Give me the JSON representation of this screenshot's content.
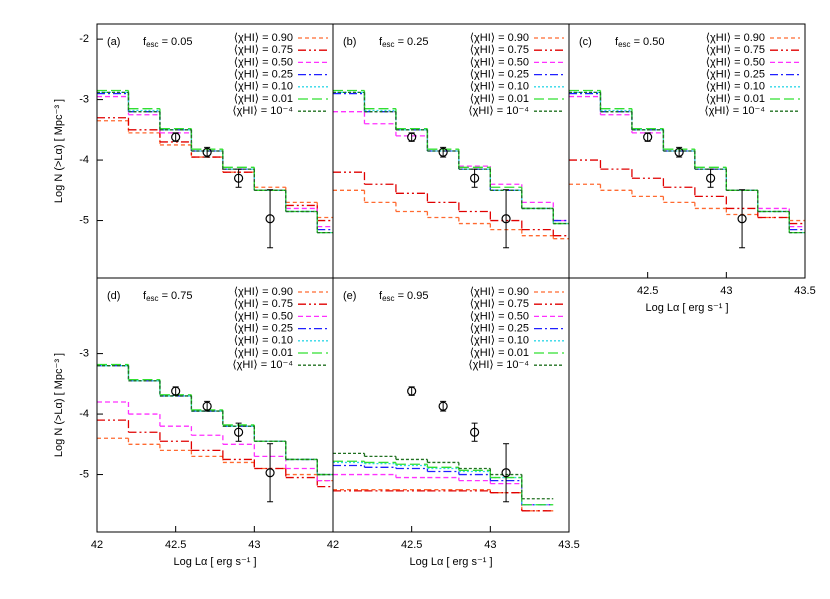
{
  "chart_data": [
    {
      "type": "step",
      "panel": "(a)",
      "annotation": {
        "main": "f",
        "sub": "esc",
        "value": " = 0.05"
      },
      "xlim": [
        42,
        43.5
      ],
      "ylim": [
        -5.95,
        -1.75
      ],
      "yticks": [
        -2,
        -3,
        -4,
        -5
      ],
      "ylabel": "Log N (>Lα)  [ Mpc⁻³ ]",
      "x": [
        42.0,
        42.2,
        42.4,
        42.6,
        42.8,
        43.0,
        43.2,
        43.4
      ],
      "series": [
        {
          "name": "⟨χHI⟩ = 0.90",
          "color": "#ff6a30",
          "values": [
            -3.35,
            -3.55,
            -3.75,
            -3.95,
            -4.2,
            -4.45,
            -4.7,
            -4.95
          ]
        },
        {
          "name": "⟨χHI⟩ = 0.75",
          "color": "#e00000",
          "values": [
            -3.3,
            -3.5,
            -3.7,
            -3.95,
            -4.2,
            -4.5,
            -4.75,
            -5.0
          ]
        },
        {
          "name": "⟨χHI⟩ = 0.50",
          "color": "#ff30ff",
          "values": [
            -2.95,
            -3.25,
            -3.55,
            -3.85,
            -4.15,
            -4.5,
            -4.8,
            -5.1
          ]
        },
        {
          "name": "⟨χHI⟩ = 0.25",
          "color": "#2020ff",
          "values": [
            -2.9,
            -3.2,
            -3.5,
            -3.85,
            -4.15,
            -4.5,
            -4.85,
            -5.15
          ]
        },
        {
          "name": "⟨χHI⟩ = 0.10",
          "color": "#30d8e8",
          "values": [
            -2.88,
            -3.18,
            -3.5,
            -3.85,
            -4.15,
            -4.5,
            -4.85,
            -5.2
          ]
        },
        {
          "name": "⟨χHI⟩ = 0.01",
          "color": "#30e030",
          "values": [
            -2.85,
            -3.15,
            -3.48,
            -3.82,
            -4.12,
            -4.5,
            -4.85,
            -5.2
          ]
        },
        {
          "name": "⟨χHI⟩ = 10⁻⁴",
          "color": "#207020",
          "values": [
            -2.88,
            -3.2,
            -3.5,
            -3.85,
            -4.15,
            -4.5,
            -4.85,
            -5.2
          ]
        }
      ]
    },
    {
      "type": "step",
      "panel": "(b)",
      "annotation": {
        "main": "f",
        "sub": "esc",
        "value": " = 0.25"
      },
      "xlim": [
        42,
        43.5
      ],
      "ylim": [
        -5.95,
        -1.75
      ],
      "x": [
        42.0,
        42.2,
        42.4,
        42.6,
        42.8,
        43.0,
        43.2,
        43.4
      ],
      "series": [
        {
          "name": "⟨χHI⟩ = 0.90",
          "color": "#ff6a30",
          "values": [
            -4.5,
            -4.7,
            -4.85,
            -4.95,
            -5.05,
            -5.15,
            -5.25,
            -5.3
          ]
        },
        {
          "name": "⟨χHI⟩ = 0.75",
          "color": "#e00000",
          "values": [
            -4.2,
            -4.4,
            -4.55,
            -4.7,
            -4.85,
            -5.0,
            -5.15,
            -5.25
          ]
        },
        {
          "name": "⟨χHI⟩ = 0.50",
          "color": "#ff30ff",
          "values": [
            -3.2,
            -3.4,
            -3.6,
            -3.85,
            -4.1,
            -4.4,
            -4.7,
            -5.0
          ]
        },
        {
          "name": "⟨χHI⟩ = 0.25",
          "color": "#2020ff",
          "values": [
            -2.9,
            -3.2,
            -3.5,
            -3.85,
            -4.15,
            -4.5,
            -4.8,
            -5.0
          ]
        },
        {
          "name": "⟨χHI⟩ = 0.10",
          "color": "#30d8e8",
          "values": [
            -2.88,
            -3.18,
            -3.5,
            -3.85,
            -4.15,
            -4.5,
            -4.8,
            -5.05
          ]
        },
        {
          "name": "⟨χHI⟩ = 0.01",
          "color": "#30e030",
          "values": [
            -2.85,
            -3.15,
            -3.48,
            -3.82,
            -4.12,
            -4.45,
            -4.8,
            -5.05
          ]
        },
        {
          "name": "⟨χHI⟩ = 10⁻⁴",
          "color": "#207020",
          "values": [
            -2.88,
            -3.2,
            -3.5,
            -3.85,
            -4.15,
            -4.5,
            -4.8,
            -5.05
          ]
        }
      ]
    },
    {
      "type": "step",
      "panel": "(c)",
      "annotation": {
        "main": "f",
        "sub": "esc",
        "value": " = 0.50"
      },
      "xlim": [
        42,
        43.5
      ],
      "ylim": [
        -5.95,
        -1.75
      ],
      "xticks": [
        42.5,
        43,
        43.5
      ],
      "xlabel": "Log Lα  [ erg s⁻¹ ]",
      "x": [
        42.0,
        42.2,
        42.4,
        42.6,
        42.8,
        43.0,
        43.2,
        43.4
      ],
      "series": [
        {
          "name": "⟨χHI⟩ = 0.90",
          "color": "#ff6a30",
          "values": [
            -4.4,
            -4.5,
            -4.6,
            -4.7,
            -4.8,
            -4.9,
            -4.95,
            -5.0
          ]
        },
        {
          "name": "⟨χHI⟩ = 0.75",
          "color": "#e00000",
          "values": [
            -4.0,
            -4.15,
            -4.3,
            -4.45,
            -4.6,
            -4.8,
            -4.95,
            -5.05
          ]
        },
        {
          "name": "⟨χHI⟩ = 0.50",
          "color": "#ff30ff",
          "values": [
            -2.95,
            -3.25,
            -3.55,
            -3.85,
            -4.15,
            -4.5,
            -4.8,
            -5.1
          ]
        },
        {
          "name": "⟨χHI⟩ = 0.25",
          "color": "#2020ff",
          "values": [
            -2.9,
            -3.2,
            -3.5,
            -3.85,
            -4.15,
            -4.5,
            -4.85,
            -5.15
          ]
        },
        {
          "name": "⟨χHI⟩ = 0.10",
          "color": "#30d8e8",
          "values": [
            -2.88,
            -3.18,
            -3.5,
            -3.85,
            -4.15,
            -4.5,
            -4.85,
            -5.2
          ]
        },
        {
          "name": "⟨χHI⟩ = 0.01",
          "color": "#30e030",
          "values": [
            -2.85,
            -3.15,
            -3.48,
            -3.82,
            -4.12,
            -4.5,
            -4.85,
            -5.2
          ]
        },
        {
          "name": "⟨χHI⟩ = 10⁻⁴",
          "color": "#207020",
          "values": [
            -2.88,
            -3.2,
            -3.5,
            -3.85,
            -4.15,
            -4.5,
            -4.85,
            -5.2
          ]
        }
      ]
    },
    {
      "type": "step",
      "panel": "(d)",
      "annotation": {
        "main": "f",
        "sub": "esc",
        "value": " = 0.75"
      },
      "xlim": [
        42,
        43.5
      ],
      "ylim": [
        -5.95,
        -1.75
      ],
      "yticks": [
        -3,
        -4,
        -5
      ],
      "xticks": [
        42,
        42.5,
        43
      ],
      "ylabel": "Log N (>Lα)  [ Mpc⁻³ ]",
      "xlabel": "Log Lα  [ erg s⁻¹ ]",
      "x": [
        42.0,
        42.2,
        42.4,
        42.6,
        42.8,
        43.0,
        43.2,
        43.4
      ],
      "series": [
        {
          "name": "⟨χHI⟩ = 0.90",
          "color": "#ff6a30",
          "values": [
            -4.4,
            -4.5,
            -4.6,
            -4.7,
            -4.8,
            -4.9,
            -5.0,
            -5.1
          ]
        },
        {
          "name": "⟨χHI⟩ = 0.75",
          "color": "#e00000",
          "values": [
            -4.1,
            -4.3,
            -4.45,
            -4.6,
            -4.75,
            -4.9,
            -5.05,
            -5.2
          ]
        },
        {
          "name": "⟨χHI⟩ = 0.50",
          "color": "#ff30ff",
          "values": [
            -3.8,
            -4.0,
            -4.2,
            -4.35,
            -4.5,
            -4.7,
            -4.9,
            -5.1
          ]
        },
        {
          "name": "⟨χHI⟩ = 0.25",
          "color": "#2020ff",
          "values": [
            -3.2,
            -3.45,
            -3.7,
            -3.95,
            -4.2,
            -4.45,
            -4.75,
            -5.0
          ]
        },
        {
          "name": "⟨χHI⟩ = 0.10",
          "color": "#30d8e8",
          "values": [
            -3.2,
            -3.45,
            -3.7,
            -3.95,
            -4.2,
            -4.45,
            -4.75,
            -5.0
          ]
        },
        {
          "name": "⟨χHI⟩ = 0.01",
          "color": "#30e030",
          "values": [
            -3.18,
            -3.43,
            -3.68,
            -3.93,
            -4.18,
            -4.45,
            -4.75,
            -5.0
          ]
        },
        {
          "name": "⟨χHI⟩ = 10⁻⁴",
          "color": "#207020",
          "values": [
            -3.2,
            -3.45,
            -3.7,
            -3.95,
            -4.2,
            -4.45,
            -4.75,
            -5.0
          ]
        }
      ]
    },
    {
      "type": "step",
      "panel": "(e)",
      "annotation": {
        "main": "f",
        "sub": "esc",
        "value": " = 0.95"
      },
      "xlim": [
        42,
        43.5
      ],
      "ylim": [
        -5.95,
        -1.75
      ],
      "xticks": [
        42,
        42.5,
        43,
        43.5
      ],
      "xlabel": "Log Lα  [ erg s⁻¹ ]",
      "x": [
        42.0,
        42.2,
        42.4,
        42.6,
        42.8,
        43.0,
        43.2,
        43.4
      ],
      "series": [
        {
          "name": "⟨χHI⟩ = 0.90",
          "color": "#ff6a30",
          "values": [
            -5.25,
            -5.25,
            -5.25,
            -5.25,
            -5.25,
            -5.3,
            -5.6,
            null
          ]
        },
        {
          "name": "⟨χHI⟩ = 0.75",
          "color": "#e00000",
          "values": [
            -5.27,
            -5.27,
            -5.27,
            -5.27,
            -5.27,
            -5.3,
            -5.6,
            null
          ]
        },
        {
          "name": "⟨χHI⟩ = 0.50",
          "color": "#ff30ff",
          "values": [
            -5.0,
            -5.0,
            -5.05,
            -5.05,
            -5.1,
            -5.15,
            -5.5,
            null
          ]
        },
        {
          "name": "⟨χHI⟩ = 0.25",
          "color": "#2020ff",
          "values": [
            -4.85,
            -4.88,
            -4.9,
            -4.95,
            -5.0,
            -5.1,
            -5.5,
            null
          ]
        },
        {
          "name": "⟨χHI⟩ = 0.10",
          "color": "#30d8e8",
          "values": [
            -4.8,
            -4.82,
            -4.85,
            -4.9,
            -4.95,
            -5.05,
            -5.5,
            null
          ]
        },
        {
          "name": "⟨χHI⟩ = 0.01",
          "color": "#30e030",
          "values": [
            -4.78,
            -4.8,
            -4.83,
            -4.88,
            -4.93,
            -5.05,
            -5.5,
            null
          ]
        },
        {
          "name": "⟨χHI⟩ = 10⁻⁴",
          "color": "#207020",
          "values": [
            -4.65,
            -4.7,
            -4.75,
            -4.8,
            -4.9,
            -5.0,
            -5.4,
            null
          ]
        }
      ]
    }
  ],
  "observed": {
    "x": [
      42.5,
      42.7,
      42.9,
      43.1
    ],
    "y": [
      -3.62,
      -3.87,
      -4.3,
      -4.97
    ],
    "err": [
      0.07,
      0.08,
      0.15,
      0.48
    ]
  }
}
